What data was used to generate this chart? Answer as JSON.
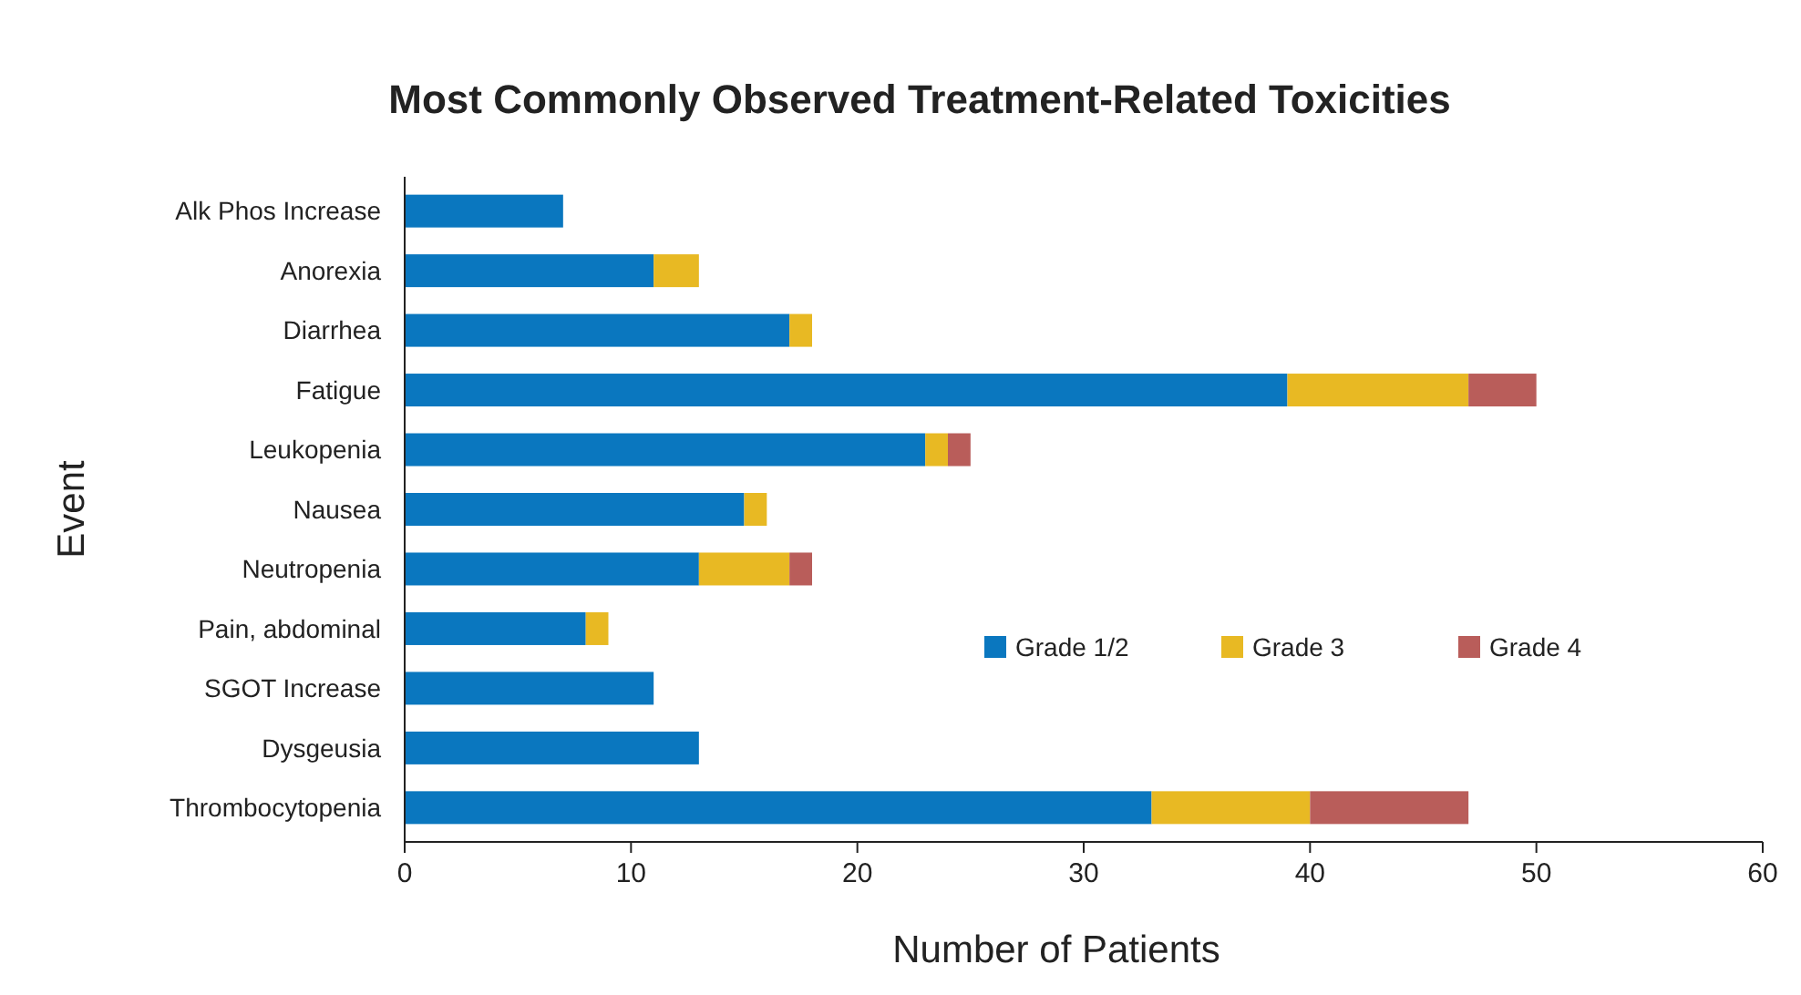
{
  "chart_data": {
    "type": "bar",
    "orientation": "horizontal",
    "stacked": true,
    "title": "Most Commonly Observed Treatment-Related Toxicities",
    "xlabel": "Number of Patients",
    "ylabel": "Event",
    "categories": [
      "Alk Phos Increase",
      "Anorexia",
      "Diarrhea",
      "Fatigue",
      "Leukopenia",
      "Nausea",
      "Neutropenia",
      "Pain, abdominal",
      "SGOT Increase",
      "Dysgeusia",
      "Thrombocytopenia"
    ],
    "series": [
      {
        "name": "Grade 1/2",
        "color": "#0a77bf",
        "values": [
          7,
          11,
          17,
          39,
          23,
          15,
          13,
          8,
          11,
          13,
          33
        ]
      },
      {
        "name": "Grade 3",
        "color": "#e8b923",
        "values": [
          null,
          2,
          1,
          8,
          1,
          1,
          4,
          1,
          null,
          null,
          7
        ]
      },
      {
        "name": "Grade 4",
        "color": "#b95d5a",
        "values": [
          null,
          null,
          null,
          3,
          1,
          null,
          1,
          null,
          null,
          null,
          7
        ]
      }
    ],
    "xlim": [
      0,
      60
    ],
    "xticks": [
      0,
      10,
      20,
      30,
      40,
      50,
      60
    ],
    "grid": false,
    "legend": "right"
  }
}
